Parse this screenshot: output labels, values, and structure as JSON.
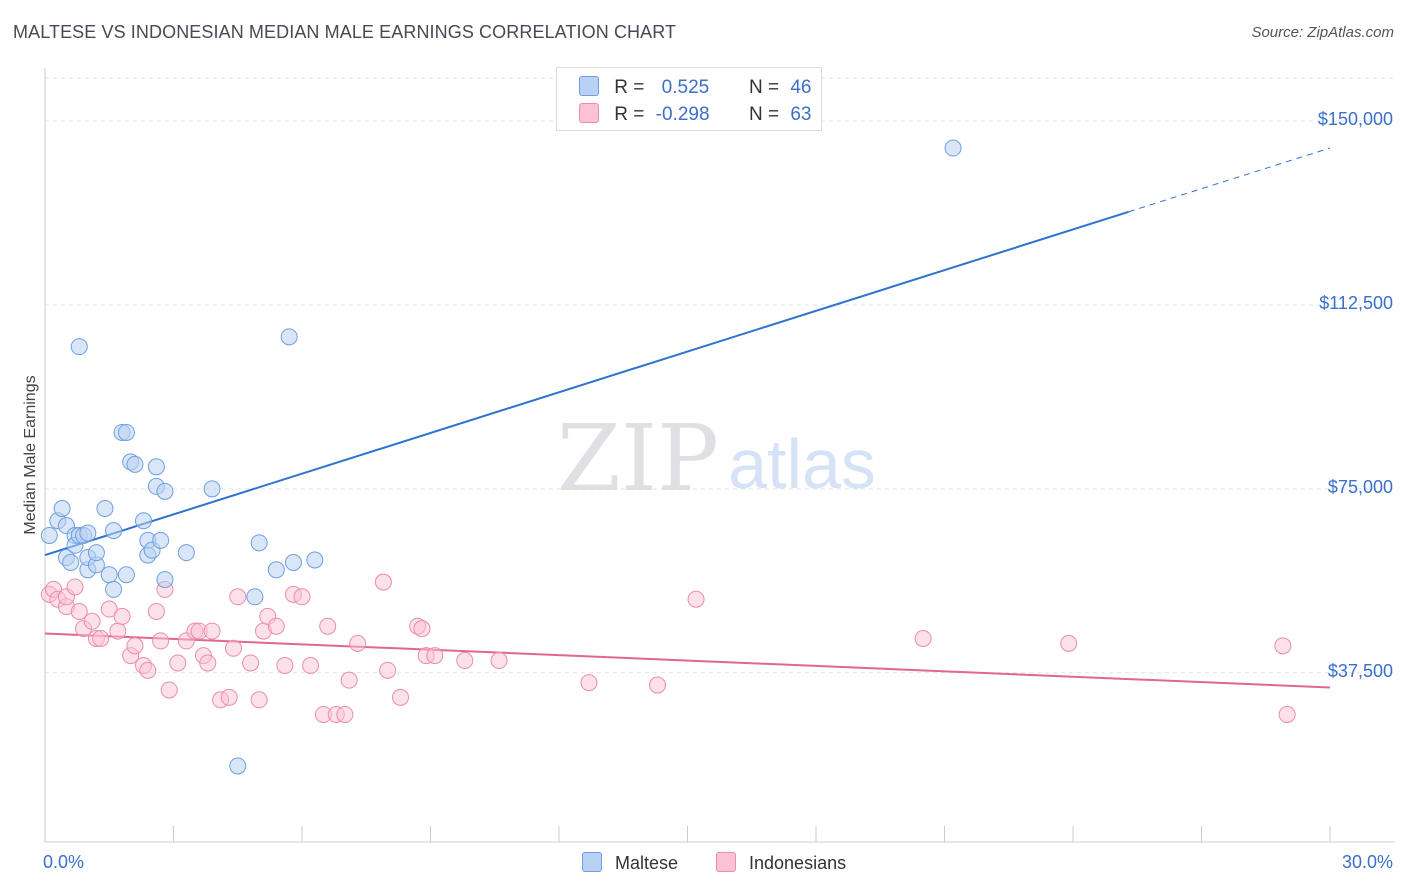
{
  "title": "MALTESE VS INDONESIAN MEDIAN MALE EARNINGS CORRELATION CHART",
  "source": "Source: ZipAtlas.com",
  "watermark": {
    "zip": "ZIP",
    "atlas": "atlas"
  },
  "legend_top": [
    {
      "r_label": "R =",
      "r_value": "0.525",
      "n_label": "N =",
      "n_value": "46"
    },
    {
      "r_label": "R =",
      "r_value": "-0.298",
      "n_label": "N =",
      "n_value": "63"
    }
  ],
  "legend_bottom": [
    "Maltese",
    "Indonesians"
  ],
  "colors": {
    "maltese_fill": "#b9d1f2",
    "maltese_stroke": "#6f9fe0",
    "maltese_line": "#2f73d0",
    "indo_fill": "#f9c3d4",
    "indo_stroke": "#ec8daa",
    "indo_line": "#e26593",
    "tick_text": "#3b6fc9"
  },
  "chart_data": {
    "type": "scatter",
    "title": "MALTESE VS INDONESIAN MEDIAN MALE EARNINGS CORRELATION CHART",
    "xlabel": "",
    "ylabel": "Median Male Earnings",
    "xlim": [
      0,
      30
    ],
    "ylim": [
      3000,
      160000
    ],
    "x_tick_labels": [
      "0.0%",
      "30.0%"
    ],
    "y_ticks": [
      37500,
      75000,
      112500,
      150000
    ],
    "y_tick_labels": [
      "$37,500",
      "$75,000",
      "$112,500",
      "$150,000"
    ],
    "grid": "horizontal dashed",
    "legend": "top-center and bottom",
    "series": [
      {
        "name": "Maltese",
        "R": 0.525,
        "N": 46,
        "trend": {
          "x0": 0,
          "y0": 61500,
          "x1": 25.3,
          "y1": 131500,
          "dashed_to_x": 30,
          "dashed_y": 144500
        },
        "points": [
          [
            0.1,
            65500
          ],
          [
            0.3,
            68500
          ],
          [
            0.4,
            71000
          ],
          [
            0.5,
            61000
          ],
          [
            0.5,
            67500
          ],
          [
            0.6,
            60000
          ],
          [
            0.7,
            65500
          ],
          [
            0.7,
            63500
          ],
          [
            0.8,
            104000
          ],
          [
            0.8,
            65500
          ],
          [
            0.9,
            65500
          ],
          [
            1.0,
            58500
          ],
          [
            1.0,
            61000
          ],
          [
            1.0,
            66000
          ],
          [
            1.2,
            59500
          ],
          [
            1.2,
            62000
          ],
          [
            1.4,
            71000
          ],
          [
            1.5,
            57500
          ],
          [
            1.6,
            66500
          ],
          [
            1.6,
            54500
          ],
          [
            1.8,
            86500
          ],
          [
            1.9,
            86500
          ],
          [
            1.9,
            57500
          ],
          [
            2.0,
            80500
          ],
          [
            2.1,
            80000
          ],
          [
            2.3,
            68500
          ],
          [
            2.4,
            64500
          ],
          [
            2.4,
            61500
          ],
          [
            2.5,
            62500
          ],
          [
            2.6,
            75500
          ],
          [
            2.6,
            79500
          ],
          [
            2.7,
            64500
          ],
          [
            2.8,
            74500
          ],
          [
            2.8,
            56500
          ],
          [
            3.3,
            62000
          ],
          [
            3.9,
            75000
          ],
          [
            4.5,
            18500
          ],
          [
            4.9,
            53000
          ],
          [
            5.0,
            64000
          ],
          [
            5.4,
            58500
          ],
          [
            5.7,
            106000
          ],
          [
            5.8,
            60000
          ],
          [
            6.3,
            60500
          ],
          [
            21.2,
            144500
          ]
        ]
      },
      {
        "name": "Indonesians",
        "R": -0.298,
        "N": 63,
        "trend": {
          "x0": 0,
          "y0": 45500,
          "x1": 30,
          "y1": 34500
        },
        "points": [
          [
            0.1,
            53500
          ],
          [
            0.2,
            54500
          ],
          [
            0.3,
            52500
          ],
          [
            0.5,
            51000
          ],
          [
            0.5,
            53000
          ],
          [
            0.7,
            55000
          ],
          [
            0.8,
            50000
          ],
          [
            0.9,
            46500
          ],
          [
            1.1,
            48000
          ],
          [
            1.2,
            44500
          ],
          [
            1.3,
            44500
          ],
          [
            1.5,
            50500
          ],
          [
            1.7,
            46000
          ],
          [
            1.8,
            49000
          ],
          [
            2.0,
            41000
          ],
          [
            2.1,
            43000
          ],
          [
            2.3,
            39000
          ],
          [
            2.4,
            38000
          ],
          [
            2.6,
            50000
          ],
          [
            2.7,
            44000
          ],
          [
            2.8,
            54500
          ],
          [
            2.9,
            34000
          ],
          [
            3.1,
            39500
          ],
          [
            3.3,
            44000
          ],
          [
            3.5,
            46000
          ],
          [
            3.6,
            46000
          ],
          [
            3.7,
            41000
          ],
          [
            3.8,
            39500
          ],
          [
            3.9,
            46000
          ],
          [
            4.1,
            32000
          ],
          [
            4.3,
            32500
          ],
          [
            4.4,
            42500
          ],
          [
            4.5,
            53000
          ],
          [
            4.8,
            39500
          ],
          [
            5.0,
            32000
          ],
          [
            5.1,
            46000
          ],
          [
            5.2,
            49000
          ],
          [
            5.4,
            47000
          ],
          [
            5.6,
            39000
          ],
          [
            5.8,
            53500
          ],
          [
            6.0,
            53000
          ],
          [
            6.2,
            39000
          ],
          [
            6.5,
            29000
          ],
          [
            6.6,
            47000
          ],
          [
            6.8,
            29000
          ],
          [
            7.0,
            29000
          ],
          [
            7.1,
            36000
          ],
          [
            7.3,
            43500
          ],
          [
            7.9,
            56000
          ],
          [
            8.0,
            38000
          ],
          [
            8.3,
            32500
          ],
          [
            8.7,
            47000
          ],
          [
            8.8,
            46500
          ],
          [
            8.9,
            41000
          ],
          [
            9.1,
            41000
          ],
          [
            9.8,
            40000
          ],
          [
            10.6,
            40000
          ],
          [
            12.7,
            35500
          ],
          [
            14.3,
            35000
          ],
          [
            15.2,
            52500
          ],
          [
            20.5,
            44500
          ],
          [
            23.9,
            43500
          ],
          [
            28.9,
            43000
          ],
          [
            29.0,
            29000
          ]
        ]
      }
    ]
  }
}
